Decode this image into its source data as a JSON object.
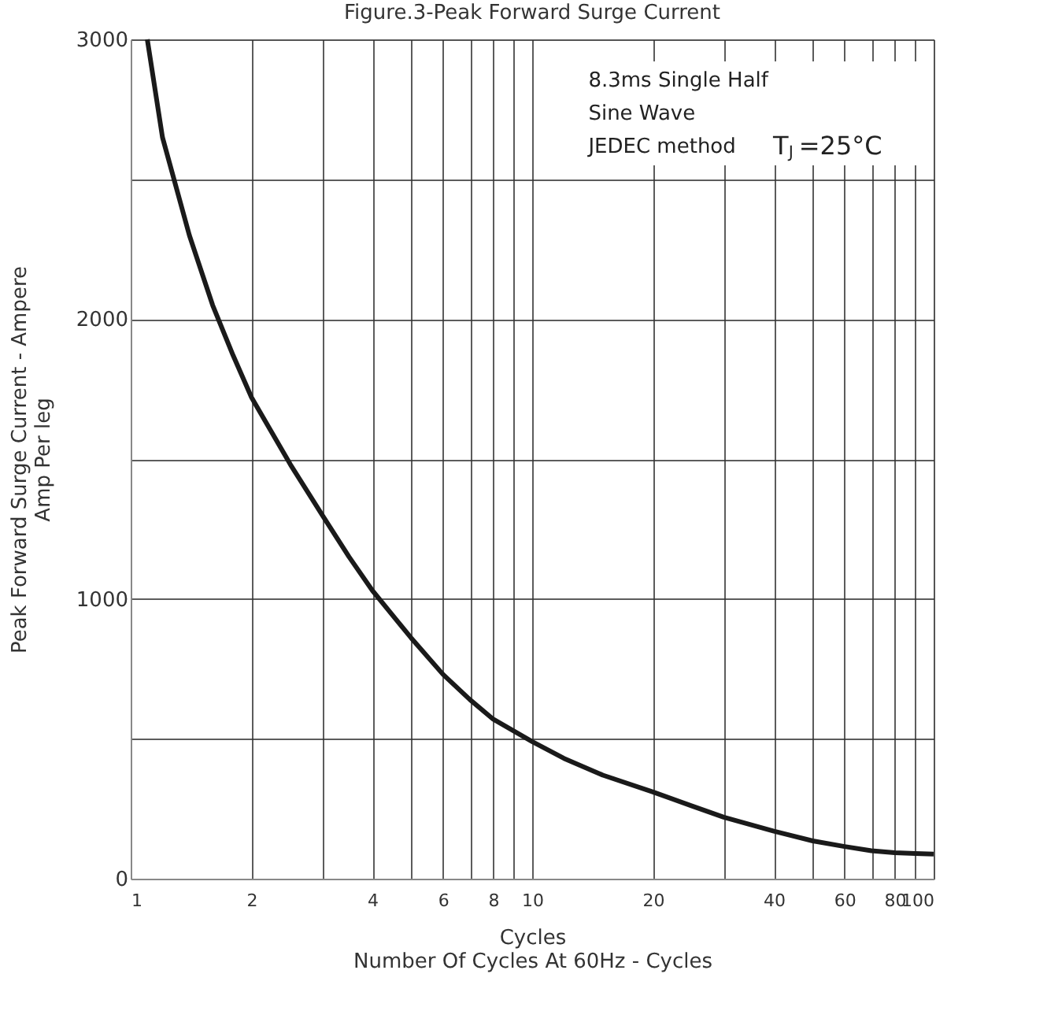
{
  "chart_data": {
    "type": "line",
    "title": "Figure.3-Peak Forward Surge Current",
    "xlabel": "Cycles\nNumber Of Cycles At  60Hz  - Cycles",
    "ylabel": "Peak Forward Surge Current - Ampere\nAmp    Per leg",
    "x": [
      1.1,
      1.2,
      1.4,
      1.6,
      1.8,
      2,
      2.5,
      3,
      3.5,
      4,
      5,
      6,
      7,
      8,
      10,
      12,
      15,
      20,
      25,
      30,
      40,
      50,
      60,
      70,
      80,
      90,
      100
    ],
    "series": [
      {
        "color": "#1a1a1a",
        "values": [
          3000,
          2650,
          2300,
          2050,
          1870,
          1720,
          1480,
          1300,
          1150,
          1030,
          860,
          730,
          640,
          570,
          490,
          430,
          370,
          310,
          260,
          220,
          170,
          135,
          115,
          100,
          93,
          90,
          88
        ]
      }
    ],
    "xlim": [
      1,
      100
    ],
    "ylim": [
      0,
      3000
    ],
    "log": "x",
    "xticks": [
      1,
      2,
      {
        "value": 3,
        "label": null
      },
      4,
      {
        "value": 5,
        "label": null
      },
      6,
      {
        "value": 7,
        "label": null
      },
      8,
      {
        "value": 9,
        "label": null
      },
      10,
      20,
      {
        "value": 30,
        "label": null
      },
      40,
      {
        "value": 50,
        "label": null
      },
      60,
      {
        "value": 70,
        "label": null
      },
      80,
      {
        "value": 90,
        "label": null
      },
      100
    ],
    "yticks": [
      0,
      {
        "value": 500,
        "label": null
      },
      1000,
      {
        "value": 1500,
        "label": null
      },
      2000,
      {
        "value": 2500,
        "label": null
      },
      3000
    ],
    "grid": true,
    "marker": "none",
    "line_style": "solid",
    "annotations": [
      "8.3ms  Single   Half",
      "Sine  Wave",
      "JEDEC  method",
      "T$_{J}$ =25°C"
    ]
  }
}
